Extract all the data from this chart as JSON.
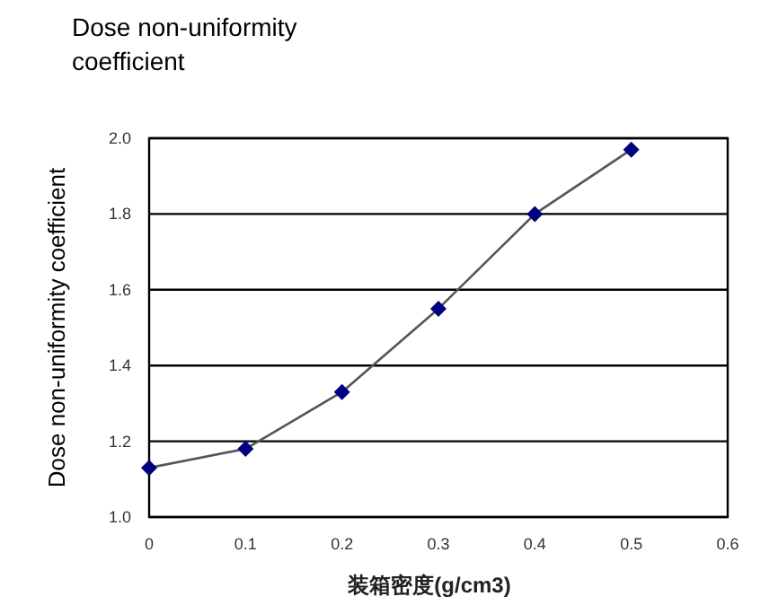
{
  "chart_data": {
    "type": "line",
    "title": "Dose non-uniformity coefficient",
    "xlabel": "装箱密度(g/cm3)",
    "ylabel": "Dose non-uniformity coefficient",
    "x": [
      0,
      0.1,
      0.2,
      0.3,
      0.4,
      0.5
    ],
    "series": [
      {
        "color": "#000080",
        "values": [
          1.13,
          1.18,
          1.33,
          1.55,
          1.8,
          1.97
        ]
      }
    ],
    "xlim": [
      0,
      0.6
    ],
    "xticks": [
      0,
      0.1,
      0.2,
      0.3,
      0.4,
      0.5,
      0.6
    ],
    "ylim": [
      1.0,
      2.0
    ],
    "yticks": [
      {
        "value": 1.0,
        "label": "1.0"
      },
      {
        "value": 1.2,
        "label": "1.2"
      },
      {
        "value": 1.4,
        "label": "1.4"
      },
      {
        "value": 1.6,
        "label": "1.6"
      },
      {
        "value": 1.8,
        "label": "1.8"
      },
      {
        "value": 2.0,
        "label": "2.0"
      }
    ],
    "grid": "y",
    "marker": "diamond",
    "line_style": "solid"
  }
}
